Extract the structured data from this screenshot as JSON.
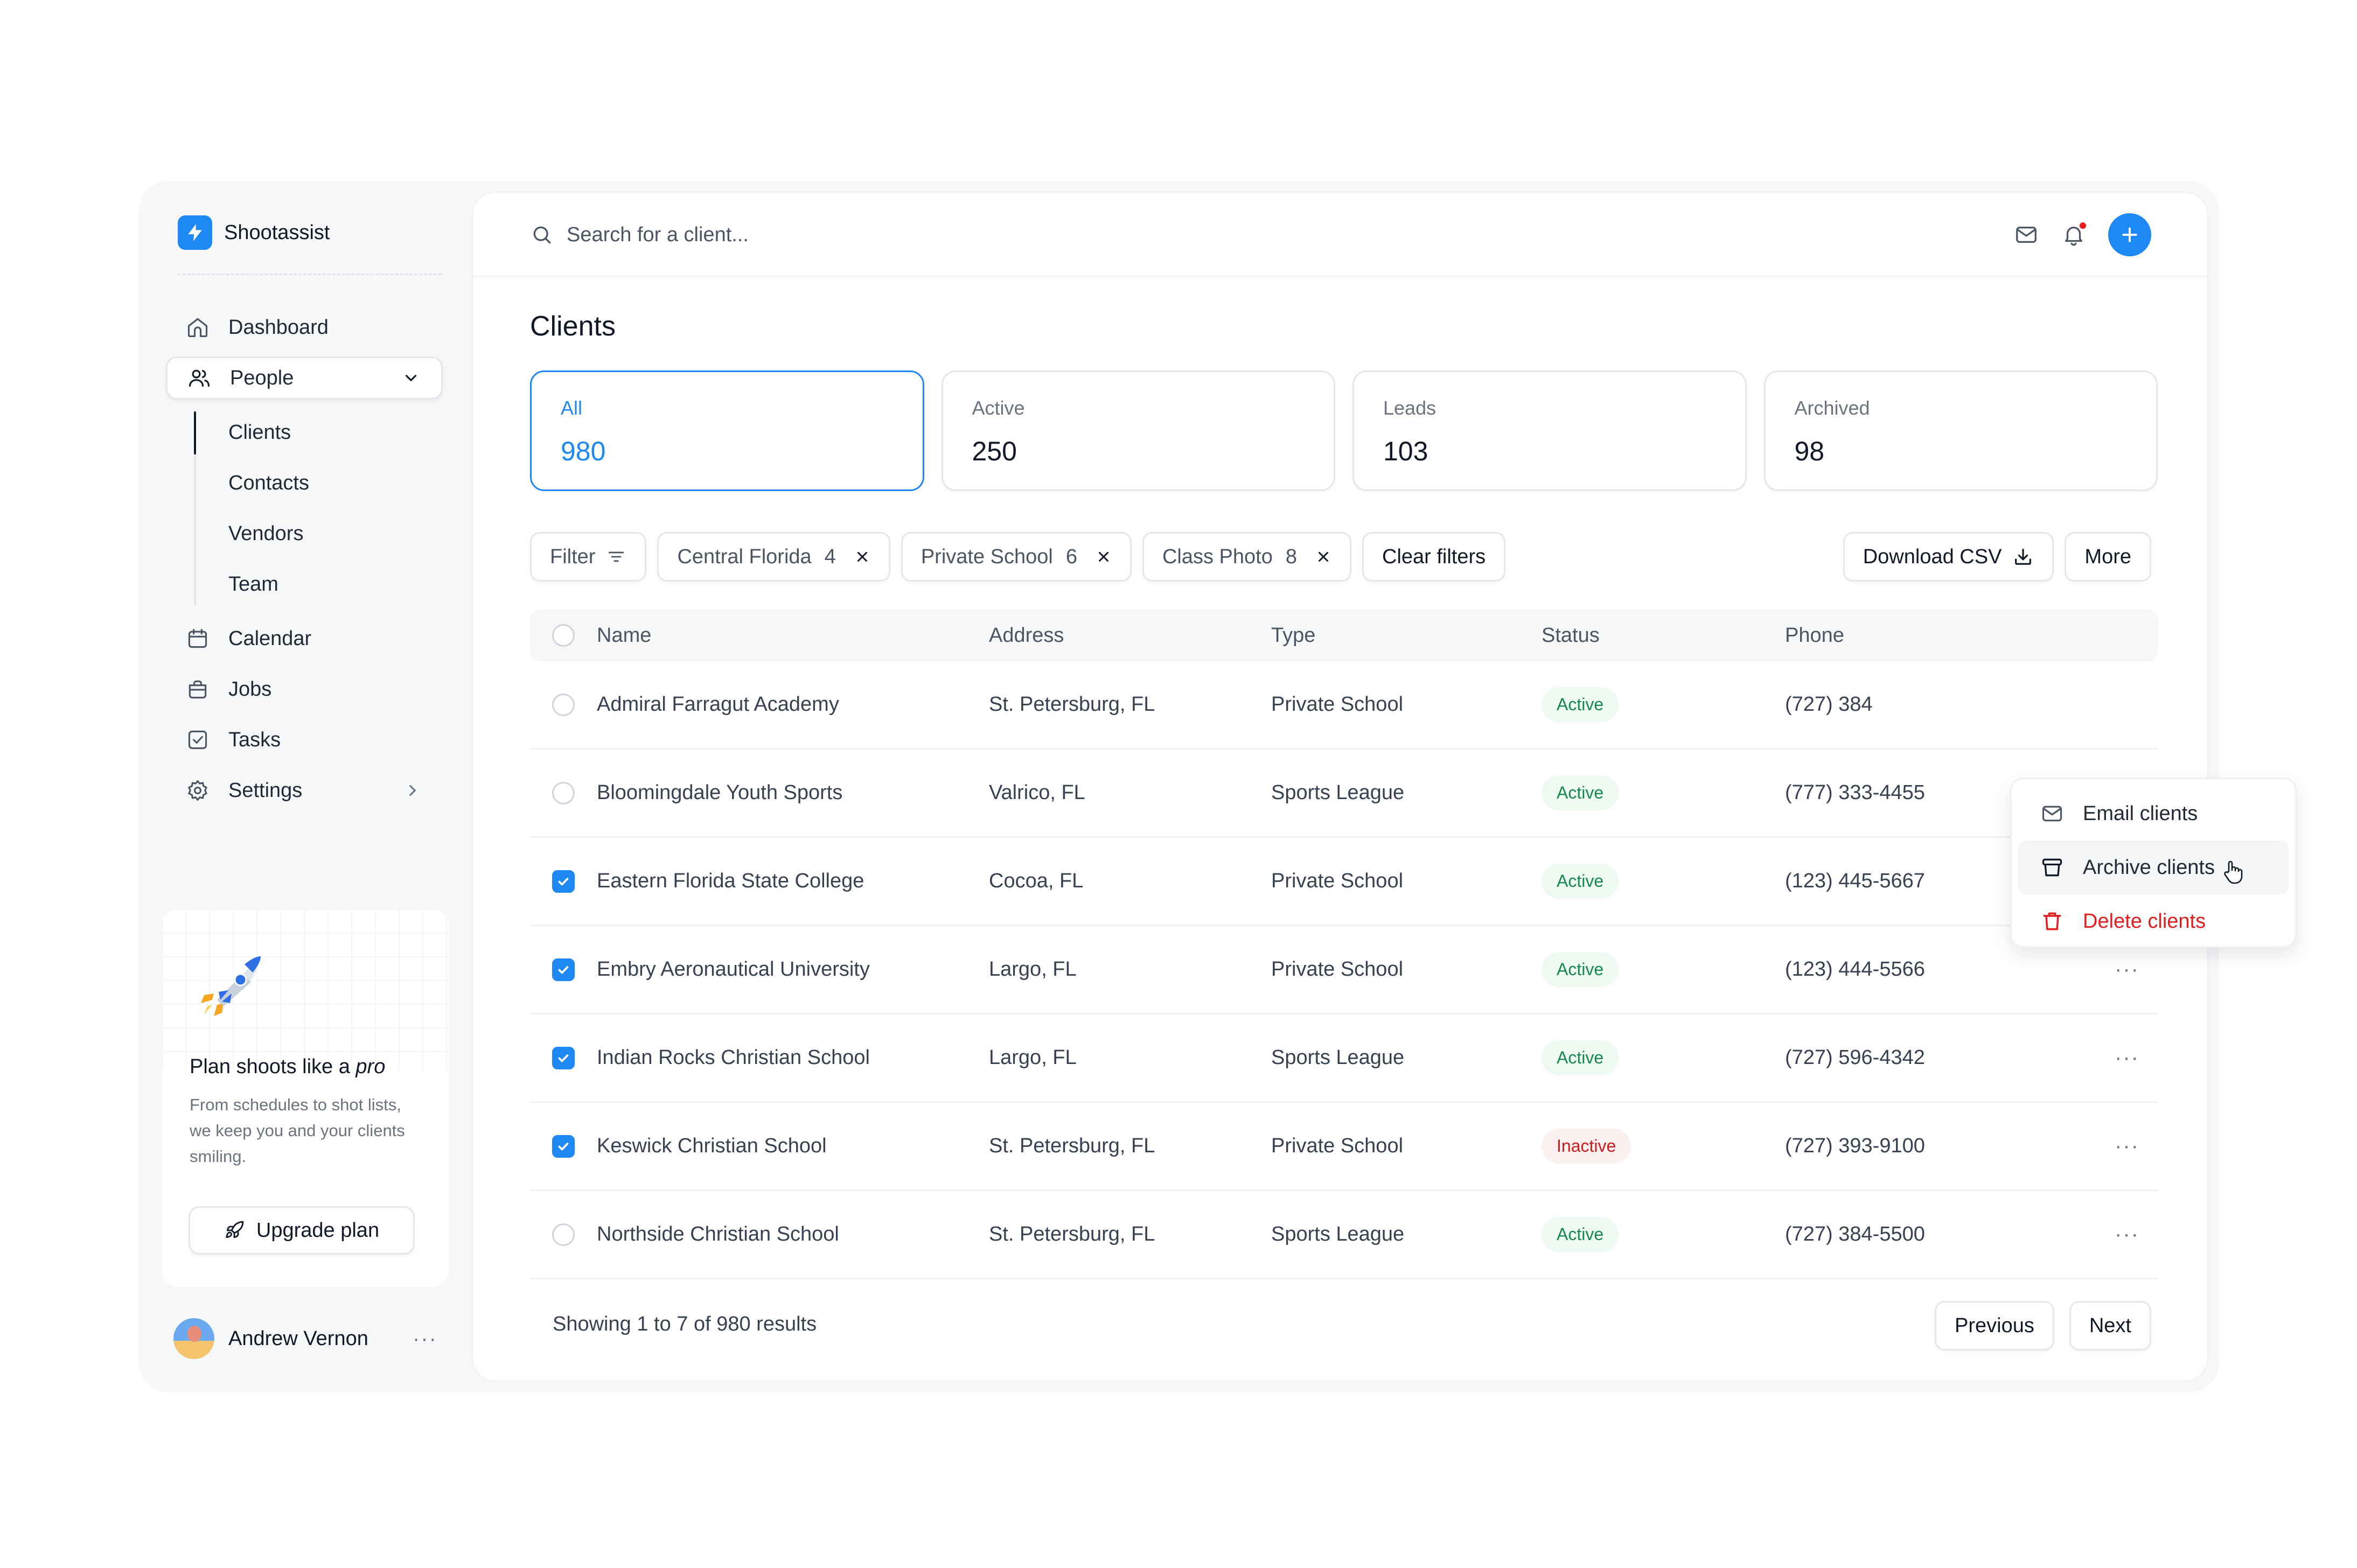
{
  "brand": {
    "name": "Shootassist"
  },
  "sidebar": {
    "items": [
      {
        "label": "Dashboard",
        "icon": "home-icon"
      },
      {
        "label": "People",
        "icon": "users-icon"
      },
      {
        "label": "Calendar",
        "icon": "calendar-icon"
      },
      {
        "label": "Jobs",
        "icon": "briefcase-icon"
      },
      {
        "label": "Tasks",
        "icon": "checkbox-icon"
      },
      {
        "label": "Settings",
        "icon": "gear-icon"
      }
    ],
    "people_sub": [
      "Clients",
      "Contacts",
      "Vendors",
      "Team"
    ],
    "active_sub": "Clients"
  },
  "promo": {
    "title_prefix": "Plan shoots like a ",
    "title_emphasis": "pro",
    "text": "From schedules to shot lists, we keep you and your clients smiling.",
    "button": "Upgrade plan"
  },
  "user": {
    "name": "Andrew Vernon",
    "more": "···"
  },
  "search": {
    "placeholder": "Search for a client..."
  },
  "page": {
    "title": "Clients"
  },
  "stats": [
    {
      "label": "All",
      "value": "980",
      "selected": true
    },
    {
      "label": "Active",
      "value": "250"
    },
    {
      "label": "Leads",
      "value": "103"
    },
    {
      "label": "Archived",
      "value": "98"
    }
  ],
  "filters": {
    "filter_label": "Filter",
    "chips": [
      {
        "label": "Central Florida",
        "count": "4"
      },
      {
        "label": "Private School",
        "count": "6"
      },
      {
        "label": "Class Photo",
        "count": "8"
      }
    ],
    "clear_label": "Clear filters",
    "download_label": "Download CSV",
    "more_label": "More"
  },
  "table": {
    "headers": {
      "name": "Name",
      "address": "Address",
      "type": "Type",
      "status": "Status",
      "phone": "Phone"
    },
    "rows": [
      {
        "name": "Admiral Farragut Academy",
        "address": "St. Petersburg, FL",
        "type": "Private School",
        "status": "Active",
        "phone": "(727) 384",
        "checked": false
      },
      {
        "name": "Bloomingdale Youth Sports",
        "address": "Valrico, FL",
        "type": "Sports League",
        "status": "Active",
        "phone": "(777) 333-4455",
        "checked": false
      },
      {
        "name": "Eastern Florida State College",
        "address": "Cocoa, FL",
        "type": "Private School",
        "status": "Active",
        "phone": "(123) 445-5667",
        "checked": true
      },
      {
        "name": "Embry Aeronautical University",
        "address": "Largo, FL",
        "type": "Private School",
        "status": "Active",
        "phone": "(123) 444-5566",
        "checked": true
      },
      {
        "name": "Indian Rocks Christian School",
        "address": "Largo, FL",
        "type": "Sports League",
        "status": "Active",
        "phone": "(727) 596-4342",
        "checked": true
      },
      {
        "name": "Keswick Christian School",
        "address": "St. Petersburg, FL",
        "type": "Private School",
        "status": "Inactive",
        "phone": "(727) 393-9100",
        "checked": true
      },
      {
        "name": "Northside Christian School",
        "address": "St. Petersburg, FL",
        "type": "Sports League",
        "status": "Active",
        "phone": "(727) 384-5500",
        "checked": false
      }
    ],
    "row_more": "···"
  },
  "dropdown": {
    "items": [
      {
        "label": "Email clients",
        "icon": "mail-icon"
      },
      {
        "label": "Archive clients",
        "icon": "archive-icon"
      },
      {
        "label": "Delete clients",
        "icon": "trash-icon"
      }
    ]
  },
  "pagination": {
    "summary": "Showing 1 to 7 of 980 results",
    "previous": "Previous",
    "next": "Next"
  },
  "colors": {
    "accent": "#1e88f5",
    "active_badge": "#17894f",
    "inactive_badge": "#d11a1a",
    "danger": "#e11d1d"
  }
}
